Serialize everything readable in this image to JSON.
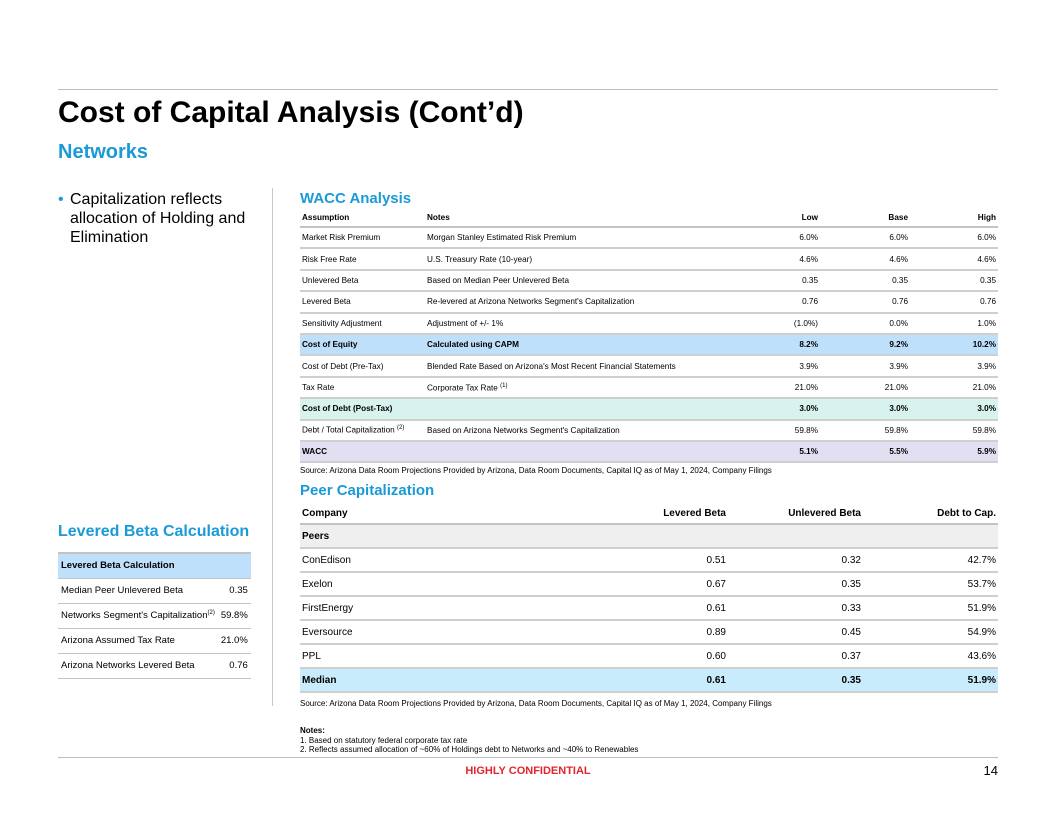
{
  "header": {
    "title": "Cost of Capital Analysis (Cont’d)",
    "subtitle": "Networks"
  },
  "bullet": "Capitalization reflects allocation of Holding and Elimination",
  "wacc": {
    "title": "WACC Analysis",
    "columns": [
      "Assumption",
      "Notes",
      "Low",
      "Base",
      "High"
    ],
    "rows": [
      {
        "a": "Market Risk Premium",
        "n": "Morgan Stanley Estimated Risk Premium",
        "v": [
          "6.0%",
          "6.0%",
          "6.0%"
        ]
      },
      {
        "a": "Risk Free Rate",
        "n": "U.S. Treasury Rate (10-year)",
        "v": [
          "4.6%",
          "4.6%",
          "4.6%"
        ]
      },
      {
        "a": "Unlevered Beta",
        "n": "Based on Median Peer Unlevered Beta",
        "v": [
          "0.35",
          "0.35",
          "0.35"
        ]
      },
      {
        "a": "Levered Beta",
        "n": "Re-levered at Arizona Networks Segment's Capitalization",
        "v": [
          "0.76",
          "0.76",
          "0.76"
        ]
      },
      {
        "a": "Sensitivity Adjustment",
        "n": "Adjustment of +/- 1%",
        "v": [
          "(1.0%)",
          "0.0%",
          "1.0%"
        ]
      },
      {
        "a": "Cost of Equity",
        "n": "Calculated using CAPM",
        "v": [
          "8.2%",
          "9.2%",
          "10.2%"
        ],
        "style": "eq"
      },
      {
        "a": "Cost of Debt (Pre-Tax)",
        "n": "Blended Rate Based on Arizona's Most Recent Financial Statements",
        "v": [
          "3.9%",
          "3.9%",
          "3.9%"
        ]
      },
      {
        "a": "Tax Rate",
        "n": "Corporate Tax Rate",
        "nsup": "(1)",
        "v": [
          "21.0%",
          "21.0%",
          "21.0%"
        ]
      },
      {
        "a": "Cost of Debt (Post-Tax)",
        "n": "",
        "v": [
          "3.0%",
          "3.0%",
          "3.0%"
        ],
        "style": "cod"
      },
      {
        "a": "Debt / Total Capitalization",
        "asup": "(2)",
        "n": "Based on Arizona Networks Segment's Capitalization",
        "v": [
          "59.8%",
          "59.8%",
          "59.8%"
        ]
      },
      {
        "a": "WACC",
        "n": "",
        "v": [
          "5.1%",
          "5.5%",
          "5.9%"
        ],
        "style": "wacc"
      }
    ],
    "source": "Source: Arizona Data Room Projections Provided by Arizona, Data Room Documents, Capital IQ as of May 1, 2024, Company Filings"
  },
  "peer": {
    "title": "Peer Capitalization",
    "columns": [
      "Company",
      "Levered Beta",
      "Unlevered Beta",
      "Debt to Cap."
    ],
    "group": "Peers",
    "rows": [
      [
        "ConEdison",
        "0.51",
        "0.32",
        "42.7%"
      ],
      [
        "Exelon",
        "0.67",
        "0.35",
        "53.7%"
      ],
      [
        "FirstEnergy",
        "0.61",
        "0.33",
        "51.9%"
      ],
      [
        "Eversource",
        "0.89",
        "0.45",
        "54.9%"
      ],
      [
        "PPL",
        "0.60",
        "0.37",
        "43.6%"
      ]
    ],
    "median": [
      "Median",
      "0.61",
      "0.35",
      "51.9%"
    ],
    "source": "Source: Arizona Data Room Projections Provided by Arizona, Data Room Documents, Capital IQ as of May 1, 2024, Company Filings"
  },
  "levered": {
    "title": "Levered Beta Calculation",
    "header": "Levered Beta Calculation",
    "rows": [
      {
        "l": "Median Peer Unlevered Beta",
        "v": "0.35"
      },
      {
        "l": "Networks Segment's Capitalization",
        "sup": "(2)",
        "v": "59.8%"
      },
      {
        "l": "Arizona Assumed Tax Rate",
        "v": "21.0%"
      },
      {
        "l": "Arizona Networks Levered Beta",
        "v": "0.76"
      }
    ]
  },
  "notes": {
    "title": "Notes:",
    "items": [
      "1.  Based on statutory federal corporate tax rate",
      "2.  Reflects assumed allocation of ~60% of Holdings debt to Networks and ~40% to Renewables"
    ]
  },
  "footer": {
    "confidential": "HIGHLY CONFIDENTIAL",
    "page": "14"
  },
  "colors": {
    "accent": "#1a9ad6",
    "confidential": "#e0262c",
    "equity_row": "#bfe0fb",
    "cod_row": "#d8f2ee",
    "wacc_row": "#e1dff1",
    "median_row": "#c8ecfb"
  }
}
